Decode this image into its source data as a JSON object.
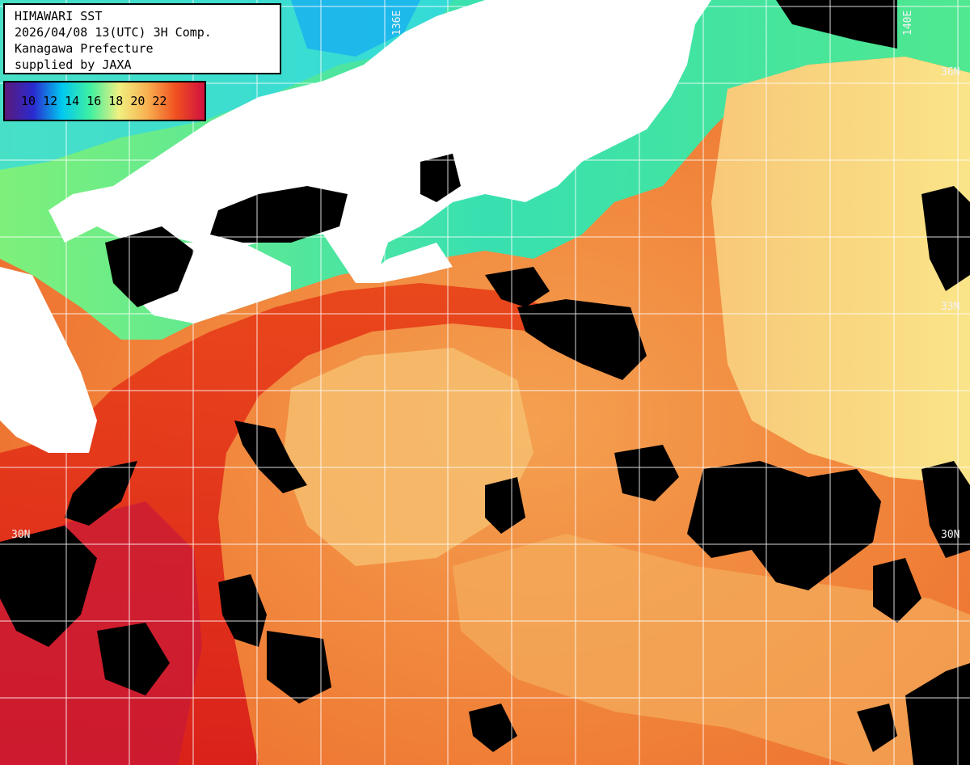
{
  "info": {
    "line1": "HIMAWARI SST",
    "line2": "2026/04/08 13(UTC) 3H Comp.",
    "line3": "Kanagawa Prefecture",
    "line4": "supplied by JAXA"
  },
  "legend": {
    "ticks": [
      "10",
      "12",
      "14",
      "16",
      "18",
      "20",
      "22"
    ],
    "colors": [
      "#5a1a7a",
      "#2a2ad0",
      "#00c8f0",
      "#40f0a0",
      "#f0f080",
      "#f8b050",
      "#f05020",
      "#d01040"
    ]
  },
  "grid_labels": {
    "lon_136": "136E",
    "lon_140": "140E",
    "lat_36": "36N",
    "lat_33": "33N",
    "lat_30_left": "30N",
    "lat_30_right": "30N"
  },
  "palette": {
    "land": "#ffffff",
    "no_data": "#000000",
    "cold_water": "#40e0a0",
    "warm_water": "#f0803a",
    "kuroshio": "#e02020",
    "offshore": "#f8e080"
  }
}
